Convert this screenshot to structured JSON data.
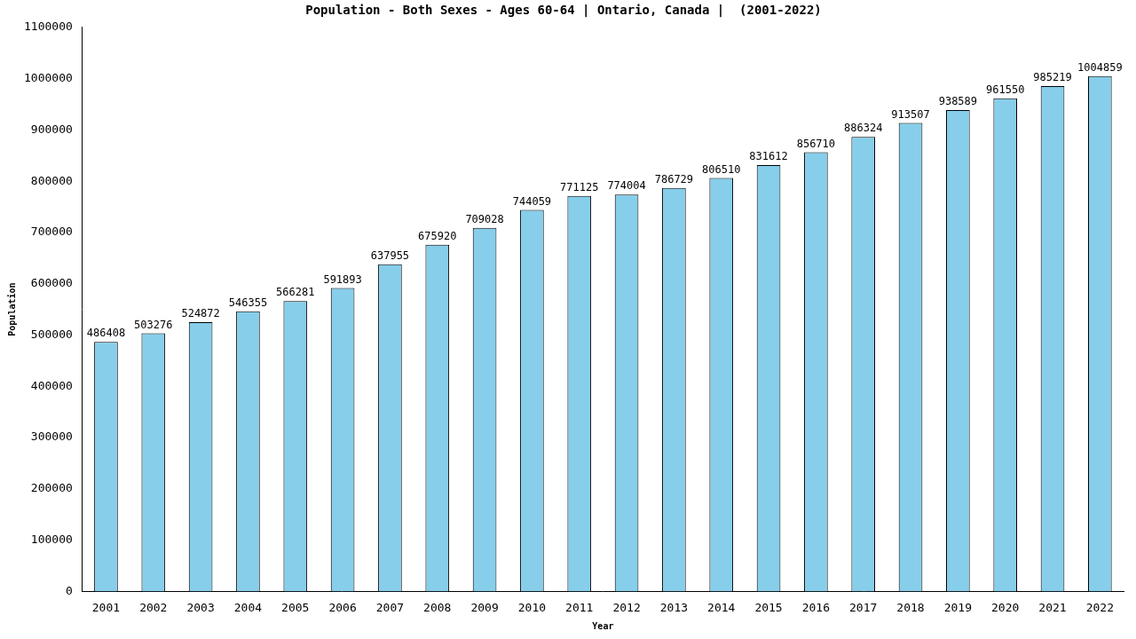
{
  "chart_data": {
    "type": "bar",
    "title": "Population - Both Sexes - Ages 60-64 | Ontario, Canada |  (2001-2022)",
    "x_label": "Year",
    "y_label": "Population",
    "categories": [
      "2001",
      "2002",
      "2003",
      "2004",
      "2005",
      "2006",
      "2007",
      "2008",
      "2009",
      "2010",
      "2011",
      "2012",
      "2013",
      "2014",
      "2015",
      "2016",
      "2017",
      "2018",
      "2019",
      "2020",
      "2021",
      "2022"
    ],
    "values": [
      486408,
      503276,
      524872,
      546355,
      566281,
      591893,
      637955,
      675920,
      709028,
      744059,
      771125,
      774004,
      786729,
      806510,
      831612,
      856710,
      886324,
      913507,
      938589,
      961550,
      985219,
      1004859
    ],
    "color": "#87ceeb",
    "ylim": [
      0,
      1100000
    ],
    "yticks": [
      0,
      100000,
      200000,
      300000,
      400000,
      500000,
      600000,
      700000,
      800000,
      900000,
      1000000,
      1100000
    ],
    "grid": false,
    "data_labels": true
  }
}
